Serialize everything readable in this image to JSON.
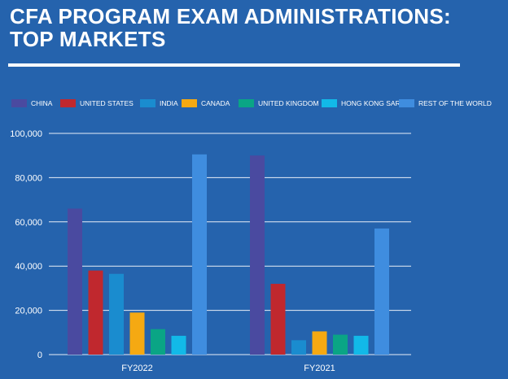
{
  "title": {
    "line1": "CFA PROGRAM EXAM ADMINISTRATIONS:",
    "line2": "TOP MARKETS"
  },
  "colors": {
    "background": "#2563ad",
    "text": "#ffffff",
    "gridline": "#e8eef7"
  },
  "chart_data": {
    "type": "bar",
    "title": "CFA PROGRAM EXAM ADMINISTRATIONS: TOP MARKETS",
    "categories": [
      "FY2022",
      "FY2021"
    ],
    "series": [
      {
        "name": "CHINA",
        "color": "#4a4aa0",
        "values": [
          66000,
          90000
        ]
      },
      {
        "name": "UNITED STATES",
        "color": "#c0282e",
        "values": [
          38000,
          32000
        ]
      },
      {
        "name": "INDIA",
        "color": "#1a8ccf",
        "values": [
          36500,
          6500
        ]
      },
      {
        "name": "CANADA",
        "color": "#f5a912",
        "values": [
          19000,
          10500
        ]
      },
      {
        "name": "UNITED KINGDOM",
        "color": "#0aa585",
        "values": [
          11500,
          9000
        ]
      },
      {
        "name": "HONG KONG SAR",
        "color": "#12b9e8",
        "values": [
          8500,
          8500
        ]
      },
      {
        "name": "REST OF THE WORLD",
        "color": "#3f8ddf",
        "values": [
          90500,
          57000
        ]
      }
    ],
    "yticks": [
      0,
      20000,
      40000,
      60000,
      80000,
      100000
    ],
    "ytick_labels": [
      "0",
      "20,000",
      "40,000",
      "60,000",
      "80,000",
      "100,000"
    ],
    "ylim": [
      0,
      100000
    ],
    "xlabel": "",
    "ylabel": "",
    "grid": true,
    "legend_position": "top"
  }
}
